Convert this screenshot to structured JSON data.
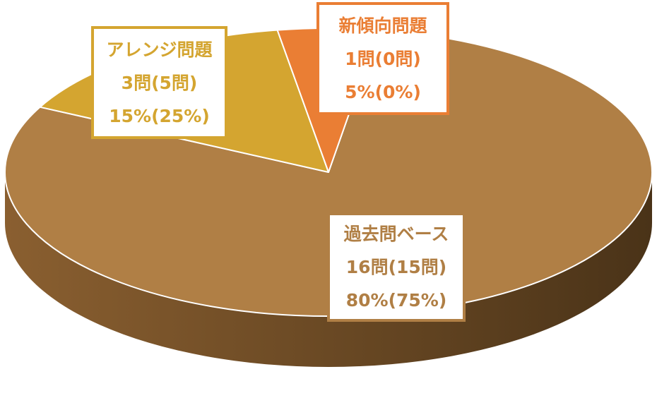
{
  "chart_data": {
    "type": "pie",
    "style": "3d",
    "slices": [
      {
        "name": "過去問ベース",
        "count_label": "16問(15問)",
        "percent_label": "80%(75%)",
        "value": 80,
        "color": "#b07f45"
      },
      {
        "name": "アレンジ問題",
        "count_label": "3問(5問)",
        "percent_label": "15%(25%)",
        "value": 15,
        "color": "#d4a530"
      },
      {
        "name": "新傾向問題",
        "count_label": "1問(0問)",
        "percent_label": "5%(0%)",
        "value": 5,
        "color": "#ea7e34"
      }
    ],
    "side_colors": [
      "#8a5f30",
      "#4a3318"
    ],
    "edge_color": "#ffffff"
  }
}
